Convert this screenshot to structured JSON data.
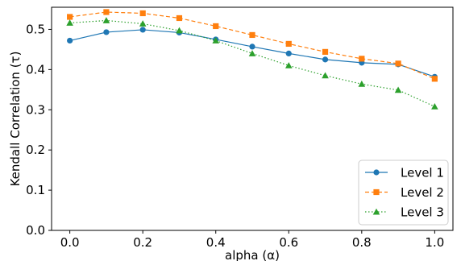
{
  "chart_data": {
    "type": "line",
    "x": [
      0.0,
      0.1,
      0.2,
      0.3,
      0.4,
      0.5,
      0.6,
      0.7,
      0.8,
      0.9,
      1.0
    ],
    "xlabel": "alpha (α)",
    "ylabel": "Kendall Correlation (τ)",
    "xlim": [
      -0.05,
      1.05
    ],
    "ylim": [
      0.0,
      0.555
    ],
    "xticks": [
      0.0,
      0.2,
      0.4,
      0.6,
      0.8,
      1.0
    ],
    "xtick_labels": [
      "0.0",
      "0.2",
      "0.4",
      "0.6",
      "0.8",
      "1.0"
    ],
    "yticks": [
      0.0,
      0.1,
      0.2,
      0.3,
      0.4,
      0.5
    ],
    "ytick_labels": [
      "0.0",
      "0.1",
      "0.2",
      "0.3",
      "0.4",
      "0.5"
    ],
    "grid": false,
    "legend_position": "bottom-right",
    "series": [
      {
        "name": "Level 1",
        "color": "#1f77b4",
        "marker": "circle",
        "line_style": "solid",
        "values": [
          0.472,
          0.493,
          0.499,
          0.492,
          0.475,
          0.457,
          0.44,
          0.425,
          0.417,
          0.413,
          0.382
        ]
      },
      {
        "name": "Level 2",
        "color": "#ff7f0e",
        "marker": "square",
        "line_style": "dashed",
        "values": [
          0.531,
          0.543,
          0.54,
          0.528,
          0.508,
          0.486,
          0.464,
          0.444,
          0.427,
          0.415,
          0.377
        ]
      },
      {
        "name": "Level 3",
        "color": "#2ca02c",
        "marker": "triangle",
        "line_style": "dotted",
        "values": [
          0.516,
          0.522,
          0.514,
          0.497,
          0.472,
          0.44,
          0.41,
          0.385,
          0.364,
          0.349,
          0.308
        ]
      }
    ]
  }
}
